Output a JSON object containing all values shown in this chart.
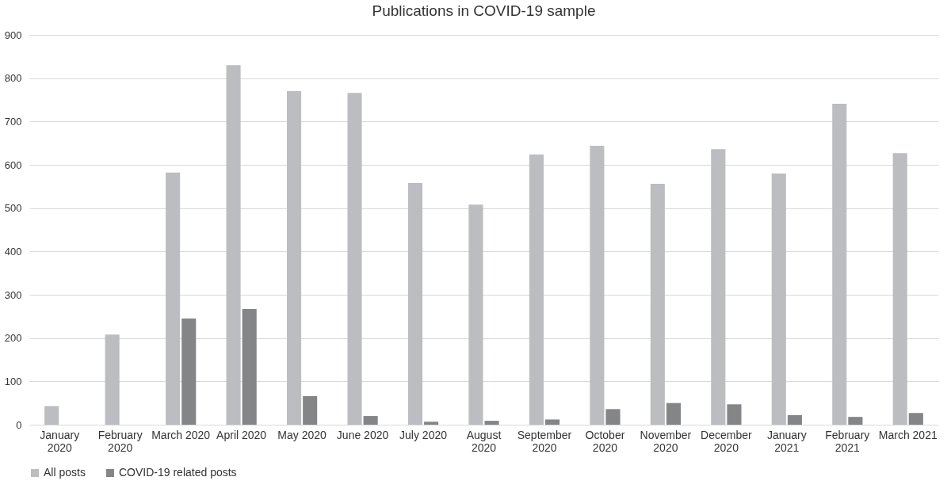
{
  "chart_data": {
    "type": "bar",
    "title": "Publications in COVID-19 sample",
    "categories": [
      "January 2020",
      "February 2020",
      "March 2020",
      "April 2020",
      "May 2020",
      "June 2020",
      "July 2020",
      "August 2020",
      "September 2020",
      "October 2020",
      "November 2020",
      "December 2020",
      "January 2021",
      "February 2021",
      "March 2021"
    ],
    "series": [
      {
        "name": "All posts",
        "color": "#bcbdc0",
        "values": [
          43,
          208,
          582,
          830,
          770,
          766,
          558,
          508,
          624,
          644,
          556,
          636,
          580,
          741,
          627
        ]
      },
      {
        "name": "COVID-19 related posts",
        "color": "#848587",
        "values": [
          0,
          0,
          245,
          267,
          66,
          20,
          7,
          9,
          12,
          36,
          50,
          47,
          22,
          18,
          27
        ]
      }
    ],
    "ylim": [
      0,
      900
    ],
    "yticks": [
      0,
      100,
      200,
      300,
      400,
      500,
      600,
      700,
      800,
      900
    ],
    "grid": "y",
    "legend": "bottom"
  }
}
